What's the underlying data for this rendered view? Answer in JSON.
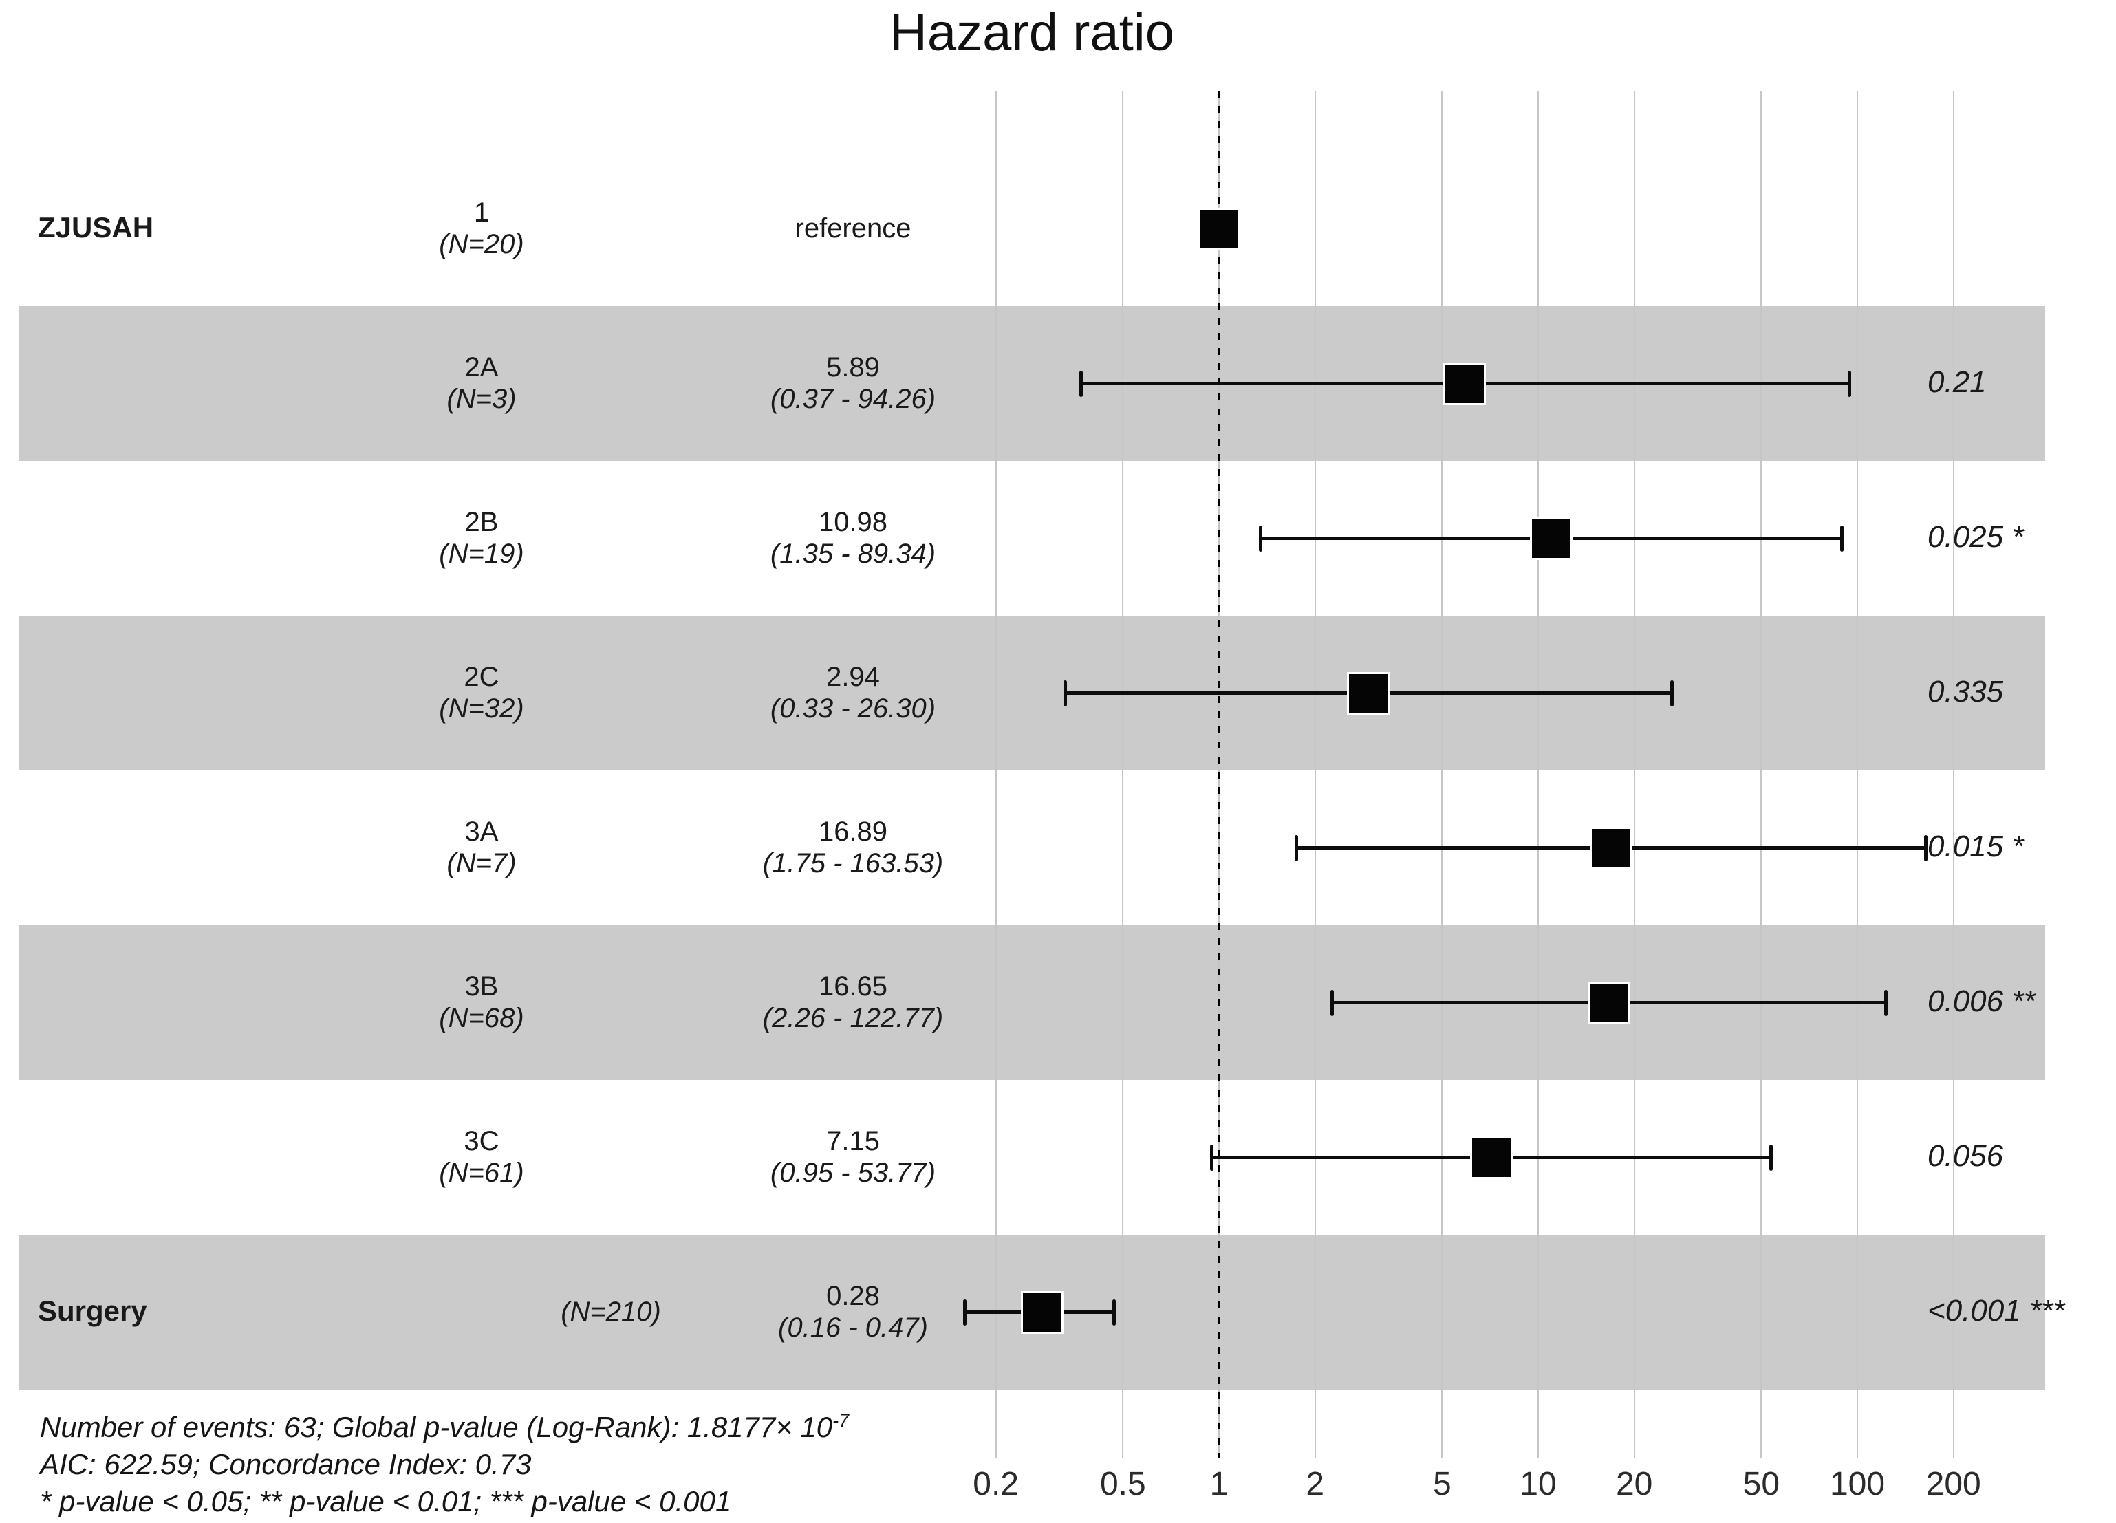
{
  "title": "Hazard ratio",
  "footer": {
    "line1": "Number of events: 63; Global p-value (Log-Rank): 1.8177× 10",
    "line1_sup": "-7",
    "line2": "AIC: 622.59; Concordance Index: 0.73",
    "line3": "* p-value < 0.05; ** p-value < 0.01; *** p-value < 0.001"
  },
  "colors": {
    "band": "#cbcbcb",
    "gridline": "#c6c6c6",
    "marker": "#050505",
    "text": "#1a1a1a"
  },
  "chart_data": {
    "type": "forest",
    "x_scale": "log10",
    "x_ticks": [
      0.2,
      0.5,
      1,
      2,
      5,
      10,
      20,
      50,
      100,
      200
    ],
    "x_range": [
      0.13,
      300
    ],
    "reference_line": 1,
    "grid": true,
    "rows": [
      {
        "term": "ZJUSAH",
        "level": "1",
        "n": "(N=20)",
        "estimate_text": "reference",
        "ci_text": "",
        "hr": 1,
        "ci_low": null,
        "ci_high": null,
        "p": "",
        "shaded": false,
        "single_ref": true
      },
      {
        "term": "",
        "level": "2A",
        "n": "(N=3)",
        "estimate_text": "5.89",
        "ci_text": "(0.37 - 94.26)",
        "hr": 5.89,
        "ci_low": 0.37,
        "ci_high": 94.26,
        "p": "0.21",
        "shaded": true
      },
      {
        "term": "",
        "level": "2B",
        "n": "(N=19)",
        "estimate_text": "10.98",
        "ci_text": "(1.35 - 89.34)",
        "hr": 10.98,
        "ci_low": 1.35,
        "ci_high": 89.34,
        "p": "0.025 *",
        "shaded": false
      },
      {
        "term": "",
        "level": "2C",
        "n": "(N=32)",
        "estimate_text": "2.94",
        "ci_text": "(0.33 - 26.30)",
        "hr": 2.94,
        "ci_low": 0.33,
        "ci_high": 26.3,
        "p": "0.335",
        "shaded": true
      },
      {
        "term": "",
        "level": "3A",
        "n": "(N=7)",
        "estimate_text": "16.89",
        "ci_text": "(1.75 - 163.53)",
        "hr": 16.89,
        "ci_low": 1.75,
        "ci_high": 163.53,
        "p": "0.015 *",
        "shaded": false
      },
      {
        "term": "",
        "level": "3B",
        "n": "(N=68)",
        "estimate_text": "16.65",
        "ci_text": "(2.26 - 122.77)",
        "hr": 16.65,
        "ci_low": 2.26,
        "ci_high": 122.77,
        "p": "0.006 **",
        "shaded": true
      },
      {
        "term": "",
        "level": "3C",
        "n": "(N=61)",
        "estimate_text": "7.15",
        "ci_text": "(0.95 - 53.77)",
        "hr": 7.15,
        "ci_low": 0.95,
        "ci_high": 53.77,
        "p": "0.056",
        "shaded": false
      },
      {
        "term": "Surgery",
        "level": "",
        "n": "(N=210)",
        "estimate_text": "0.28",
        "ci_text": "(0.16 -  0.47)",
        "hr": 0.28,
        "ci_low": 0.16,
        "ci_high": 0.47,
        "p": "<0.001 ***",
        "shaded": true,
        "n_single_line": true,
        "n_x": 888
      }
    ]
  }
}
